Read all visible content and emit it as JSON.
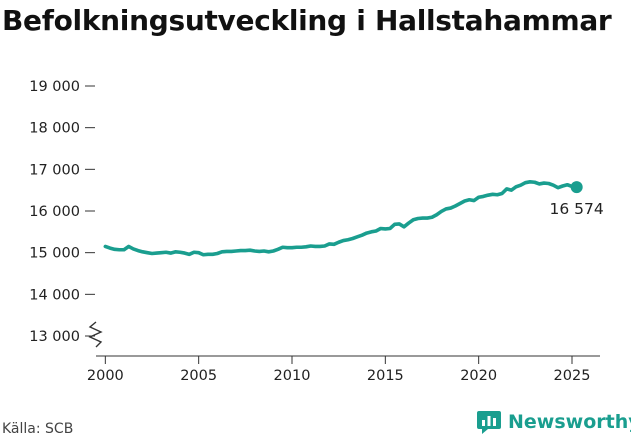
{
  "title": "Befolkningsutveckling i Hallstahammar",
  "source": "Källa: SCB",
  "brand": "Newsworthy",
  "colors": {
    "line": "#1a9e8f",
    "brand": "#1a9e8f",
    "axis": "#333333"
  },
  "chart_data": {
    "type": "line",
    "title": "Befolkningsutveckling i Hallstahammar",
    "xlabel": "",
    "ylabel": "",
    "xlim": [
      1999.5,
      2026.5
    ],
    "ylim": [
      13000,
      19000
    ],
    "y_axis_break": true,
    "grid": false,
    "legend": "none",
    "x_ticks": [
      2000,
      2005,
      2010,
      2015,
      2020,
      2025
    ],
    "x_tick_labels": [
      "2000",
      "2005",
      "2010",
      "2015",
      "2020",
      "2025"
    ],
    "y_ticks": [
      13000,
      14000,
      15000,
      16000,
      17000,
      18000,
      19000
    ],
    "y_tick_labels": [
      "13 000",
      "14 000",
      "15 000",
      "16 000",
      "17 000",
      "18 000",
      "19 000"
    ],
    "end_label": "16 574",
    "series": [
      {
        "x": [
          2000.0,
          2000.25,
          2000.5,
          2000.75,
          2001.0,
          2001.25,
          2001.5,
          2001.75,
          2002.0,
          2002.25,
          2002.5,
          2002.75,
          2003.0,
          2003.25,
          2003.5,
          2003.75,
          2004.0,
          2004.25,
          2004.5,
          2004.75,
          2005.0,
          2005.25,
          2005.5,
          2005.75,
          2006.0,
          2006.25,
          2006.5,
          2006.75,
          2007.0,
          2007.25,
          2007.5,
          2007.75,
          2008.0,
          2008.25,
          2008.5,
          2008.75,
          2009.0,
          2009.25,
          2009.5,
          2009.75,
          2010.0,
          2010.25,
          2010.5,
          2010.75,
          2011.0,
          2011.25,
          2011.5,
          2011.75,
          2012.0,
          2012.25,
          2012.5,
          2012.75,
          2013.0,
          2013.25,
          2013.5,
          2013.75,
          2014.0,
          2014.25,
          2014.5,
          2014.75,
          2015.0,
          2015.25,
          2015.5,
          2015.75,
          2016.0,
          2016.25,
          2016.5,
          2016.75,
          2017.0,
          2017.25,
          2017.5,
          2017.75,
          2018.0,
          2018.25,
          2018.5,
          2018.75,
          2019.0,
          2019.25,
          2019.5,
          2019.75,
          2020.0,
          2020.25,
          2020.5,
          2020.75,
          2021.0,
          2021.25,
          2021.5,
          2021.75,
          2022.0,
          2022.25,
          2022.5,
          2022.75,
          2023.0,
          2023.25,
          2023.5,
          2023.75,
          2024.0,
          2024.25,
          2024.5,
          2024.75,
          2025.0,
          2025.25
        ],
        "y": [
          15150,
          15110,
          15080,
          15070,
          15070,
          15150,
          15090,
          15050,
          15020,
          15000,
          14980,
          14990,
          15000,
          15010,
          14990,
          15020,
          15010,
          14990,
          14960,
          15010,
          15000,
          14950,
          14960,
          14960,
          14980,
          15020,
          15030,
          15030,
          15040,
          15050,
          15050,
          15060,
          15040,
          15030,
          15040,
          15020,
          15040,
          15080,
          15130,
          15120,
          15120,
          15130,
          15130,
          15140,
          15160,
          15150,
          15150,
          15160,
          15210,
          15200,
          15250,
          15290,
          15310,
          15340,
          15380,
          15420,
          15470,
          15500,
          15520,
          15580,
          15570,
          15580,
          15680,
          15690,
          15620,
          15710,
          15790,
          15820,
          15830,
          15830,
          15850,
          15910,
          15990,
          16050,
          16070,
          16120,
          16180,
          16240,
          16270,
          16250,
          16330,
          16350,
          16380,
          16400,
          16390,
          16420,
          16530,
          16500,
          16580,
          16620,
          16680,
          16700,
          16690,
          16650,
          16670,
          16660,
          16620,
          16560,
          16600,
          16630,
          16590,
          16574
        ]
      }
    ]
  }
}
